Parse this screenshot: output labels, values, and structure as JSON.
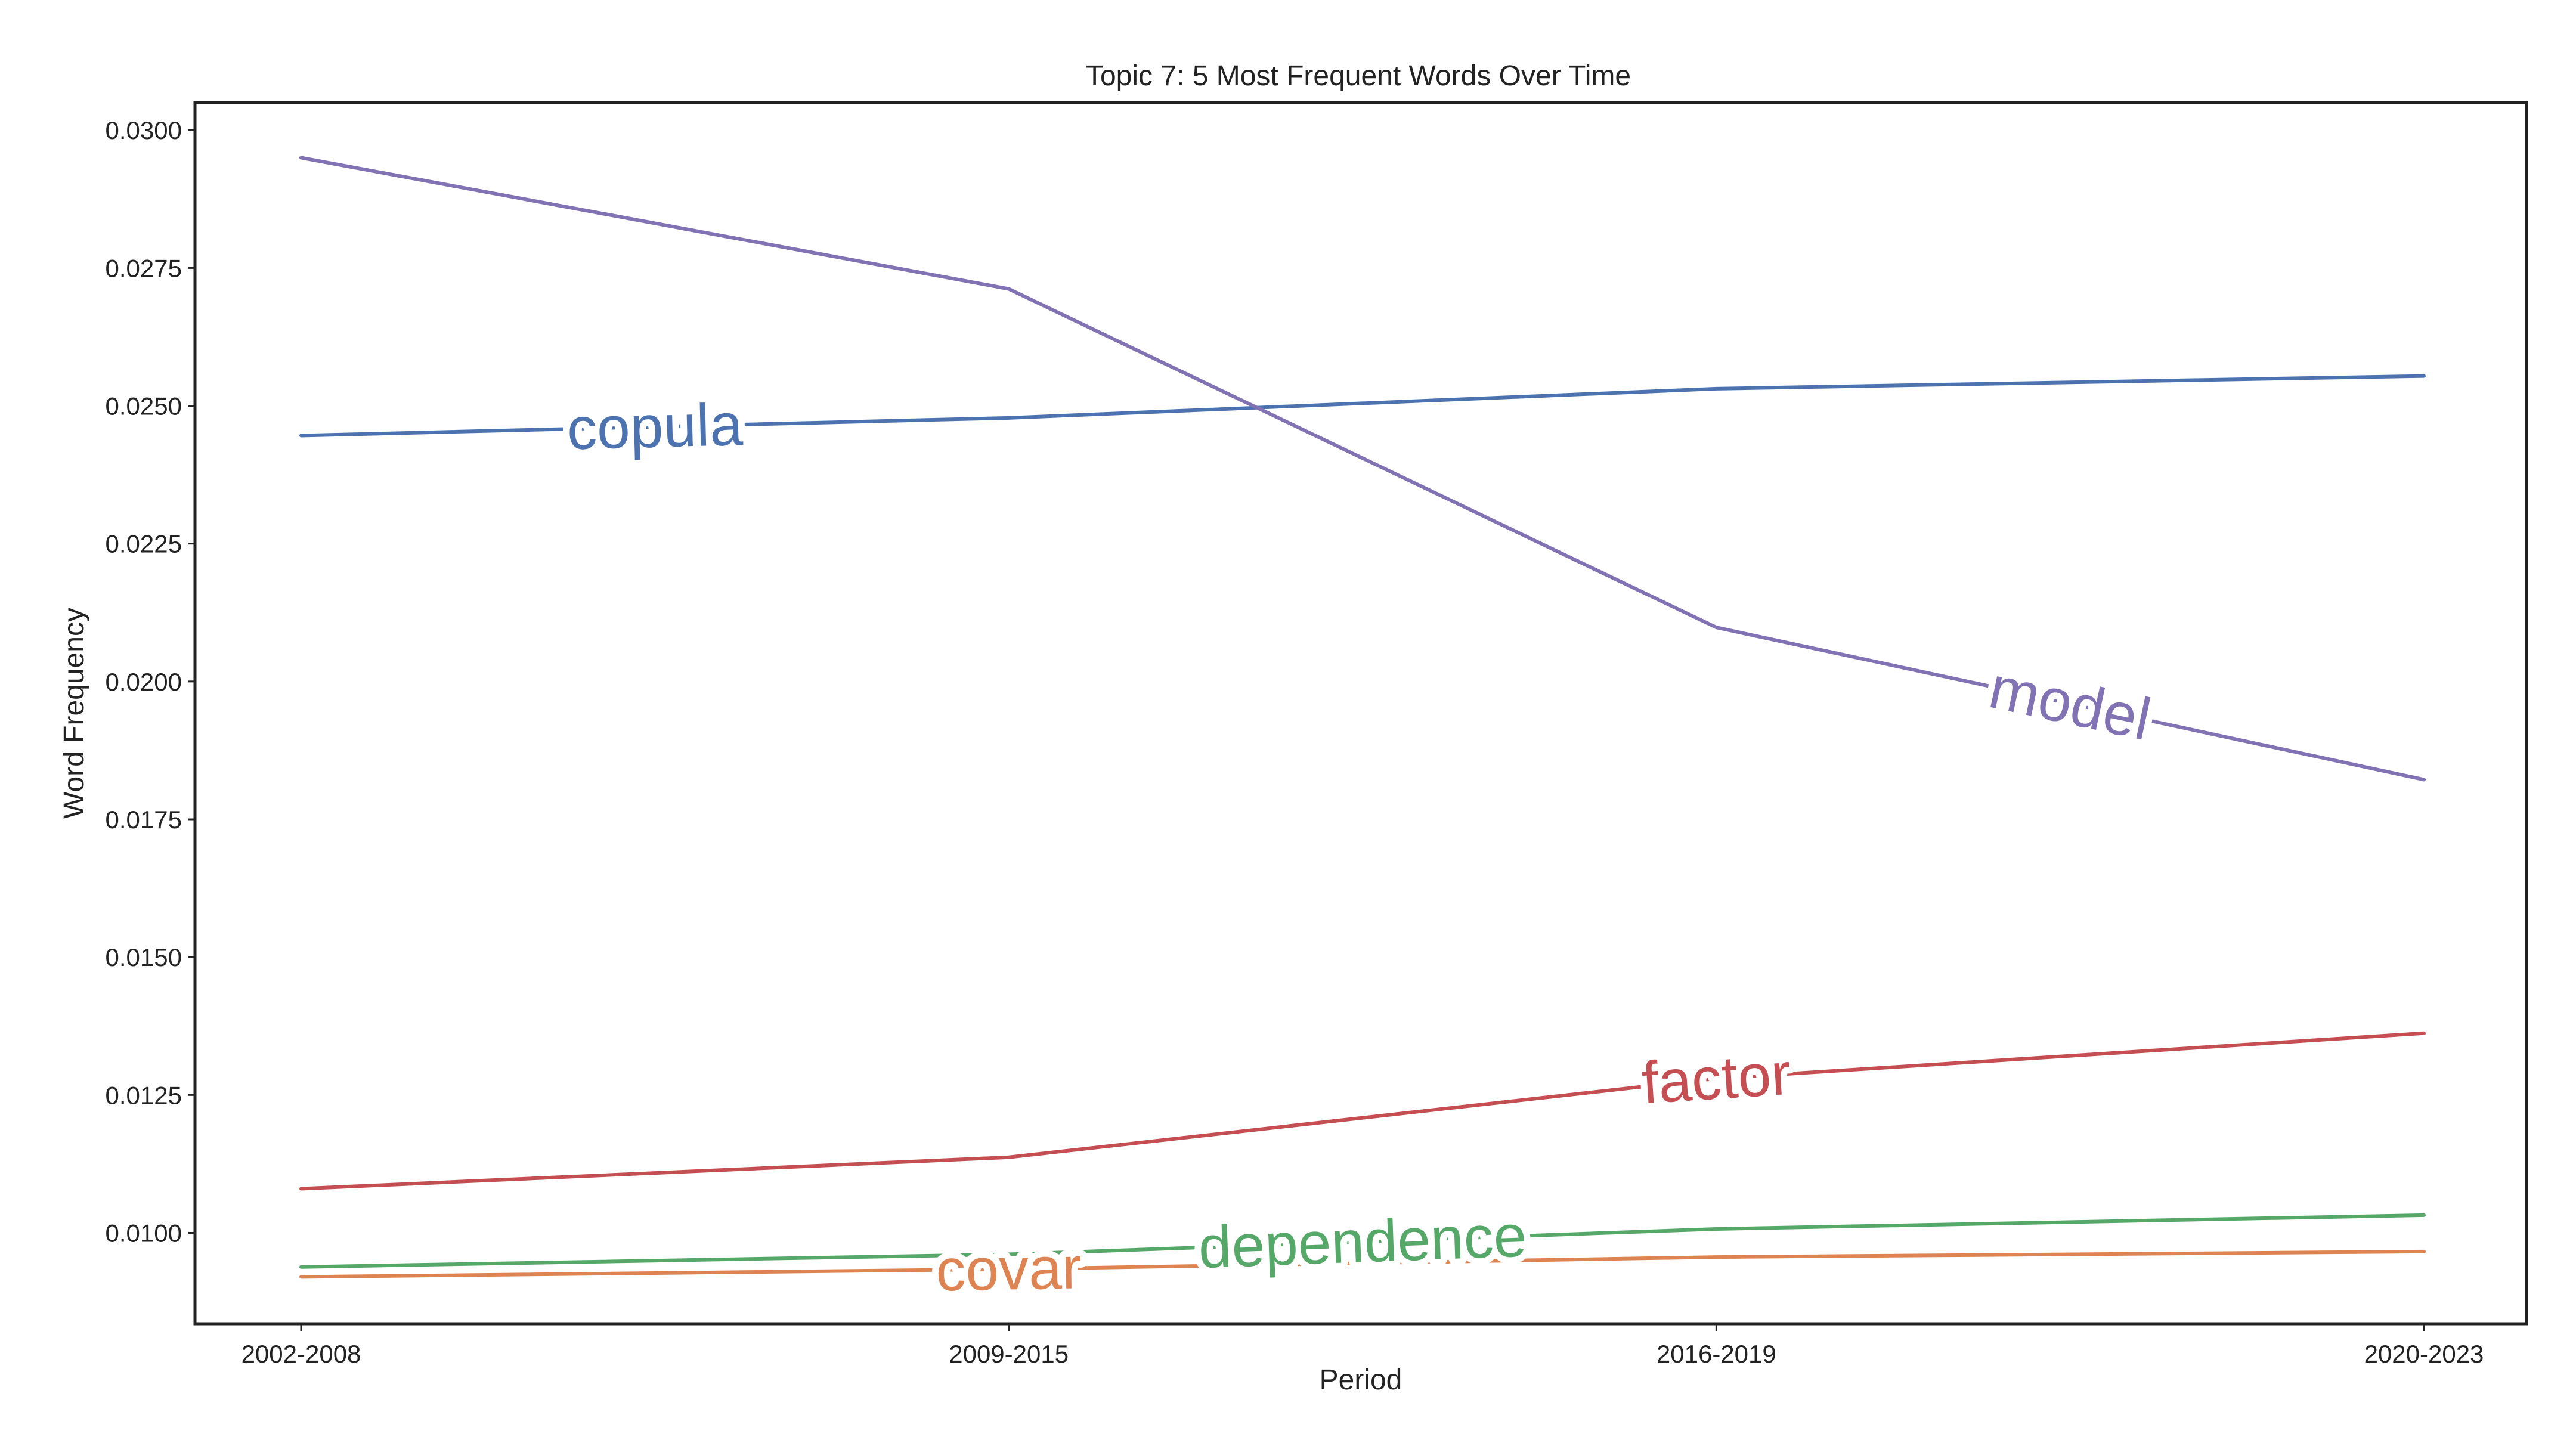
{
  "chart_data": {
    "type": "line",
    "title": "Topic 7: 5 Most Frequent Words Over Time",
    "xlabel": "Period",
    "ylabel": "Word Frequency",
    "categories": [
      "2002-2008",
      "2009-2015",
      "2016-2019",
      "2020-2023"
    ],
    "ylim": [
      0.00835,
      0.0305
    ],
    "yticks": [
      "0.0100",
      "0.0125",
      "0.0150",
      "0.0175",
      "0.0200",
      "0.0225",
      "0.0250",
      "0.0275",
      "0.0300"
    ],
    "grid": false,
    "legend": "inline labels on lines",
    "series": [
      {
        "name": "copula",
        "color": "#4c72b0",
        "values": [
          0.02446,
          0.02478,
          0.02531,
          0.02554
        ],
        "label_at": 0.5
      },
      {
        "name": "model",
        "color": "#8172b3",
        "values": [
          0.0295,
          0.02712,
          0.02098,
          0.01822
        ],
        "label_at": 2.5
      },
      {
        "name": "factor",
        "color": "#c44e52",
        "values": [
          0.0108,
          0.01137,
          0.0128,
          0.01362
        ],
        "label_at": 2.0
      },
      {
        "name": "dependence",
        "color": "#55a868",
        "values": [
          0.00938,
          0.00961,
          0.01007,
          0.01032
        ],
        "label_at": 1.5
      },
      {
        "name": "covar",
        "color": "#dd8452",
        "values": [
          0.0092,
          0.00934,
          0.00956,
          0.00966
        ],
        "label_at": 1.0
      }
    ]
  }
}
